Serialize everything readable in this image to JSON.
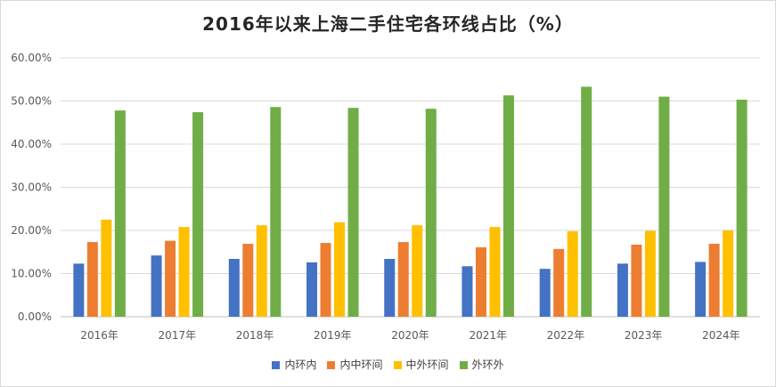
{
  "chart_data": {
    "type": "bar",
    "title": "2016年以来上海二手住宅各环线占比（%）",
    "categories": [
      "2016年",
      "2017年",
      "2018年",
      "2019年",
      "2020年",
      "2021年",
      "2022年",
      "2023年",
      "2024年"
    ],
    "ylim": [
      0,
      60
    ],
    "yticks": [
      "0.00%",
      "10.00%",
      "20.00%",
      "30.00%",
      "40.00%",
      "50.00%",
      "60.00%"
    ],
    "ytick_values": [
      0,
      10,
      20,
      30,
      40,
      50,
      60
    ],
    "grid": true,
    "legend_position": "bottom",
    "series": [
      {
        "name": "内环内",
        "color": "#4472c4",
        "values": [
          12.3,
          14.2,
          13.4,
          12.6,
          13.4,
          11.7,
          11.1,
          12.3,
          12.7
        ]
      },
      {
        "name": "内中环间",
        "color": "#ed7d31",
        "values": [
          17.3,
          17.6,
          16.9,
          17.1,
          17.3,
          16.1,
          15.7,
          16.7,
          16.9
        ]
      },
      {
        "name": "中外环间",
        "color": "#ffc000",
        "values": [
          22.5,
          20.8,
          21.2,
          21.9,
          21.2,
          20.8,
          19.8,
          19.9,
          20.0
        ]
      },
      {
        "name": "外环外",
        "color": "#70ad47",
        "values": [
          47.8,
          47.4,
          48.6,
          48.4,
          48.2,
          51.3,
          53.3,
          51.0,
          50.3
        ]
      }
    ]
  }
}
